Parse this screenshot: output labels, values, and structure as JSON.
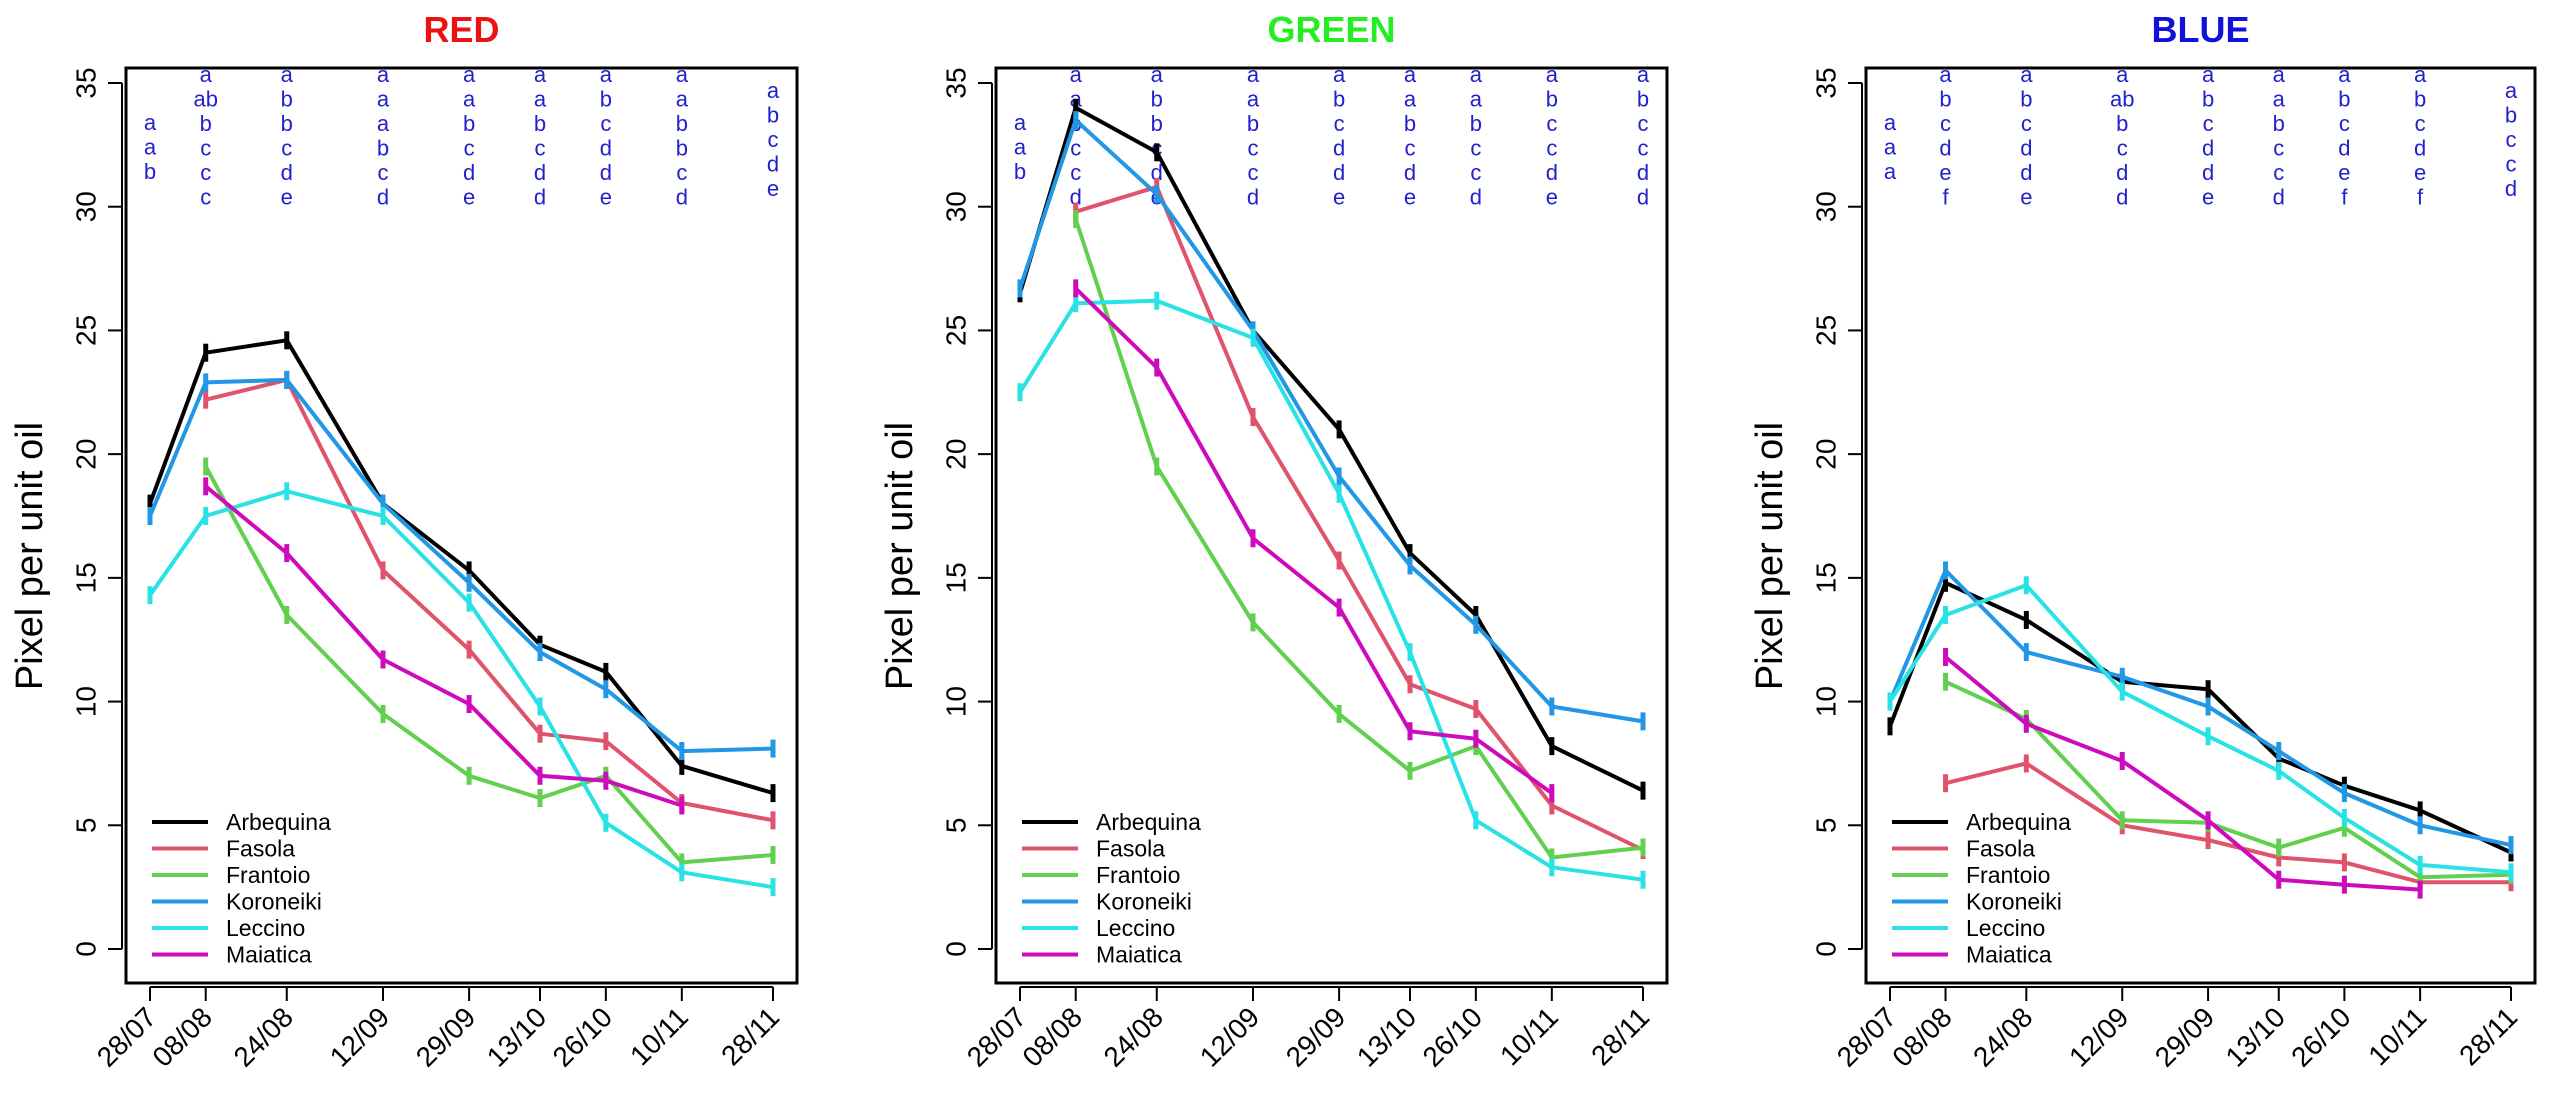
{
  "chart_data": [
    {
      "type": "line",
      "title": "RED",
      "title_color": "#ee1111",
      "ylabel": "Pixel per unit oil",
      "xlabel": "",
      "ylim": [
        0,
        35
      ],
      "yticks": [
        0,
        5,
        10,
        15,
        20,
        25,
        30,
        35
      ],
      "categories": [
        "28/07",
        "08/08",
        "24/08",
        "12/09",
        "29/09",
        "13/10",
        "26/10",
        "10/11",
        "28/11"
      ],
      "x_days": [
        0,
        11,
        27,
        46,
        63,
        77,
        90,
        105,
        123
      ],
      "letters": [
        [
          "a",
          "a",
          "b"
        ],
        [
          "a",
          "ab",
          "b",
          "c",
          "c",
          "c"
        ],
        [
          "a",
          "b",
          "b",
          "c",
          "d",
          "e"
        ],
        [
          "a",
          "a",
          "a",
          "b",
          "c",
          "d"
        ],
        [
          "a",
          "a",
          "b",
          "c",
          "d",
          "e"
        ],
        [
          "a",
          "a",
          "b",
          "c",
          "d",
          "d"
        ],
        [
          "a",
          "b",
          "c",
          "d",
          "d",
          "e"
        ],
        [
          "a",
          "a",
          "b",
          "b",
          "c",
          "d"
        ],
        [
          "a",
          "b",
          "c",
          "d",
          "e"
        ]
      ],
      "series": [
        {
          "name": "Arbequina",
          "color": "#000000",
          "values": [
            18.0,
            24.1,
            24.6,
            18.0,
            15.3,
            12.3,
            11.2,
            7.4,
            6.3
          ]
        },
        {
          "name": "Fasola",
          "color": "#df536b",
          "values": [
            null,
            22.2,
            23.0,
            15.3,
            12.1,
            8.7,
            8.4,
            5.9,
            5.2
          ]
        },
        {
          "name": "Frantoio",
          "color": "#61d04f",
          "values": [
            null,
            19.5,
            13.5,
            9.5,
            7.0,
            6.1,
            7.0,
            3.5,
            3.8
          ]
        },
        {
          "name": "Koroneiki",
          "color": "#2297e6",
          "values": [
            17.5,
            22.9,
            23.0,
            18.0,
            14.8,
            12.0,
            10.5,
            8.0,
            8.1
          ]
        },
        {
          "name": "Leccino",
          "color": "#28e2e5",
          "values": [
            14.3,
            17.5,
            18.5,
            17.5,
            14.0,
            9.8,
            5.1,
            3.1,
            2.5
          ]
        },
        {
          "name": "Maiatica",
          "color": "#cd0bbc",
          "values": [
            null,
            18.7,
            16.0,
            11.7,
            9.9,
            7.0,
            6.8,
            5.8,
            null
          ]
        }
      ],
      "legend": "bottom-left"
    },
    {
      "type": "line",
      "title": "GREEN",
      "title_color": "#22ee22",
      "ylabel": "Pixel per unit oil",
      "xlabel": "",
      "ylim": [
        0,
        35
      ],
      "yticks": [
        0,
        5,
        10,
        15,
        20,
        25,
        30,
        35
      ],
      "categories": [
        "28/07",
        "08/08",
        "24/08",
        "12/09",
        "29/09",
        "13/10",
        "26/10",
        "10/11",
        "28/11"
      ],
      "x_days": [
        0,
        11,
        27,
        46,
        63,
        77,
        90,
        105,
        123
      ],
      "letters": [
        [
          "a",
          "a",
          "b"
        ],
        [
          "a",
          "a",
          "b",
          "c",
          "c",
          "d"
        ],
        [
          "a",
          "b",
          "b",
          "c",
          "d",
          "e"
        ],
        [
          "a",
          "a",
          "b",
          "c",
          "c",
          "d"
        ],
        [
          "a",
          "b",
          "c",
          "d",
          "d",
          "e"
        ],
        [
          "a",
          "a",
          "b",
          "c",
          "d",
          "e"
        ],
        [
          "a",
          "a",
          "b",
          "c",
          "c",
          "d"
        ],
        [
          "a",
          "b",
          "c",
          "c",
          "d",
          "e"
        ],
        [
          "a",
          "b",
          "c",
          "c",
          "d",
          "d"
        ]
      ],
      "series": [
        {
          "name": "Arbequina",
          "color": "#000000",
          "values": [
            26.5,
            34.0,
            32.2,
            25.0,
            21.0,
            16.0,
            13.5,
            8.2,
            6.4
          ]
        },
        {
          "name": "Fasola",
          "color": "#df536b",
          "values": [
            null,
            29.8,
            30.8,
            21.5,
            15.7,
            10.7,
            9.7,
            5.8,
            4.0
          ]
        },
        {
          "name": "Frantoio",
          "color": "#61d04f",
          "values": [
            null,
            29.5,
            19.5,
            13.2,
            9.5,
            7.2,
            8.2,
            3.7,
            4.1
          ]
        },
        {
          "name": "Koroneiki",
          "color": "#2297e6",
          "values": [
            26.7,
            33.5,
            30.5,
            25.0,
            19.1,
            15.5,
            13.1,
            9.8,
            9.2
          ]
        },
        {
          "name": "Leccino",
          "color": "#28e2e5",
          "values": [
            22.5,
            26.1,
            26.2,
            24.7,
            18.4,
            12.0,
            5.2,
            3.3,
            2.8
          ]
        },
        {
          "name": "Maiatica",
          "color": "#cd0bbc",
          "values": [
            null,
            26.7,
            23.5,
            16.6,
            13.8,
            8.8,
            8.5,
            6.3,
            null
          ]
        }
      ],
      "legend": "bottom-left"
    },
    {
      "type": "line",
      "title": "BLUE",
      "title_color": "#1111dd",
      "ylabel": "Pixel per unit oil",
      "xlabel": "",
      "ylim": [
        0,
        35
      ],
      "yticks": [
        0,
        5,
        10,
        15,
        20,
        25,
        30,
        35
      ],
      "categories": [
        "28/07",
        "08/08",
        "24/08",
        "12/09",
        "29/09",
        "13/10",
        "26/10",
        "10/11",
        "28/11"
      ],
      "x_days": [
        0,
        11,
        27,
        46,
        63,
        77,
        90,
        105,
        123
      ],
      "letters": [
        [
          "a",
          "a",
          "a"
        ],
        [
          "a",
          "b",
          "c",
          "d",
          "e",
          "f"
        ],
        [
          "a",
          "b",
          "c",
          "d",
          "d",
          "e"
        ],
        [
          "a",
          "ab",
          "b",
          "c",
          "d",
          "d"
        ],
        [
          "a",
          "b",
          "c",
          "d",
          "d",
          "e"
        ],
        [
          "a",
          "a",
          "b",
          "c",
          "c",
          "d"
        ],
        [
          "a",
          "b",
          "c",
          "d",
          "e",
          "f"
        ],
        [
          "a",
          "b",
          "c",
          "d",
          "e",
          "f"
        ],
        [
          "a",
          "b",
          "c",
          "c",
          "d"
        ]
      ],
      "series": [
        {
          "name": "Arbequina",
          "color": "#000000",
          "values": [
            9.0,
            14.8,
            13.3,
            10.8,
            10.5,
            7.7,
            6.6,
            5.6,
            3.9
          ]
        },
        {
          "name": "Fasola",
          "color": "#df536b",
          "values": [
            null,
            6.7,
            7.5,
            5.0,
            4.4,
            3.7,
            3.5,
            2.7,
            2.7
          ]
        },
        {
          "name": "Frantoio",
          "color": "#61d04f",
          "values": [
            null,
            10.8,
            9.3,
            5.2,
            5.1,
            4.1,
            4.9,
            2.9,
            3.0
          ]
        },
        {
          "name": "Koroneiki",
          "color": "#2297e6",
          "values": [
            10.0,
            15.3,
            12.0,
            11.0,
            9.8,
            8.0,
            6.3,
            5.0,
            4.2
          ]
        },
        {
          "name": "Leccino",
          "color": "#28e2e5",
          "values": [
            10.0,
            13.5,
            14.7,
            10.4,
            8.6,
            7.2,
            5.3,
            3.4,
            3.1
          ]
        },
        {
          "name": "Maiatica",
          "color": "#cd0bbc",
          "values": [
            null,
            11.8,
            9.1,
            7.6,
            5.2,
            2.8,
            2.6,
            2.4,
            null
          ]
        }
      ],
      "legend": "bottom-left"
    }
  ]
}
